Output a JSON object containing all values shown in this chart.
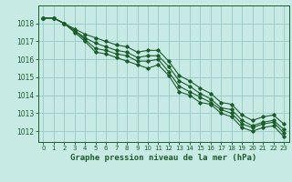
{
  "title": "Graphe pression niveau de la mer (hPa)",
  "bg_color": "#c8eae4",
  "grid_color": "#a0cccc",
  "line_color": "#1a5c2a",
  "xlim": [
    -0.5,
    23.5
  ],
  "ylim": [
    1011.4,
    1019.0
  ],
  "yticks": [
    1012,
    1013,
    1014,
    1015,
    1016,
    1017,
    1018
  ],
  "xticks": [
    0,
    1,
    2,
    3,
    4,
    5,
    6,
    7,
    8,
    9,
    10,
    11,
    12,
    13,
    14,
    15,
    16,
    17,
    18,
    19,
    20,
    21,
    22,
    23
  ],
  "series": [
    [
      1018.3,
      1018.3,
      1018.0,
      1017.5,
      1017.0,
      1016.4,
      1016.3,
      1016.1,
      1015.9,
      1015.7,
      1015.5,
      1015.7,
      1015.1,
      1014.2,
      1014.0,
      1013.6,
      1013.5,
      1013.0,
      1012.8,
      1012.2,
      1012.0,
      1012.2,
      1012.3,
      1011.7
    ],
    [
      1018.3,
      1018.3,
      1018.0,
      1017.6,
      1017.1,
      1016.6,
      1016.5,
      1016.3,
      1016.2,
      1015.9,
      1015.9,
      1016.0,
      1015.3,
      1014.5,
      1014.2,
      1013.9,
      1013.6,
      1013.2,
      1013.0,
      1012.4,
      1012.2,
      1012.4,
      1012.5,
      1011.9
    ],
    [
      1018.3,
      1018.3,
      1018.0,
      1017.6,
      1017.2,
      1016.9,
      1016.7,
      1016.5,
      1016.4,
      1016.1,
      1016.2,
      1016.2,
      1015.6,
      1014.8,
      1014.5,
      1014.1,
      1013.8,
      1013.3,
      1013.2,
      1012.6,
      1012.3,
      1012.5,
      1012.6,
      1012.1
    ],
    [
      1018.3,
      1018.3,
      1018.0,
      1017.7,
      1017.4,
      1017.2,
      1017.0,
      1016.8,
      1016.7,
      1016.4,
      1016.5,
      1016.5,
      1015.9,
      1015.1,
      1014.8,
      1014.4,
      1014.1,
      1013.6,
      1013.5,
      1012.9,
      1012.6,
      1012.8,
      1012.9,
      1012.4
    ]
  ]
}
